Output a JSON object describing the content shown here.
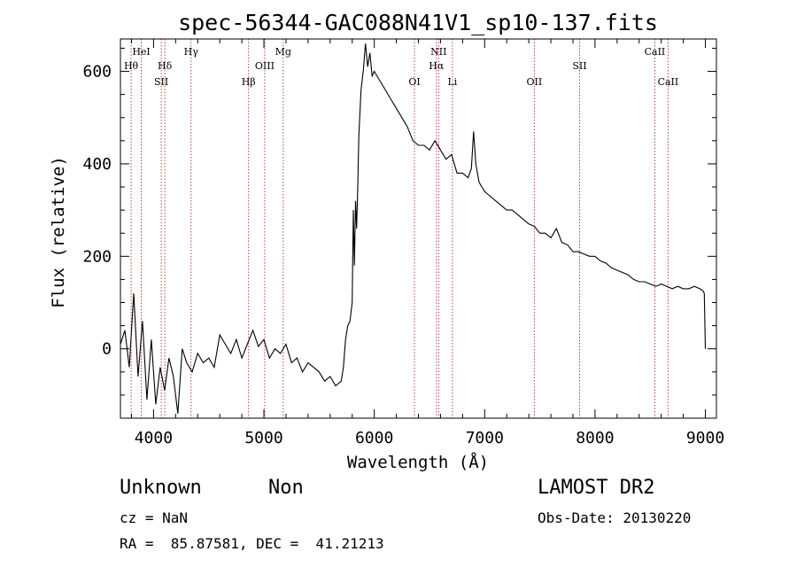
{
  "chart_data": {
    "type": "line",
    "title": "spec-56344-GAC088N41V1_sp10-137.fits",
    "xlabel": "Wavelength (Å)",
    "ylabel": "Flux (relative)",
    "xlim": [
      3700,
      9100
    ],
    "ylim": [
      -150,
      670
    ],
    "x_ticks": [
      4000,
      5000,
      6000,
      7000,
      8000,
      9000
    ],
    "y_ticks": [
      0,
      200,
      400,
      600
    ],
    "x": [
      3700,
      3740,
      3780,
      3820,
      3860,
      3900,
      3940,
      3980,
      4020,
      4060,
      4100,
      4140,
      4180,
      4220,
      4260,
      4300,
      4350,
      4400,
      4450,
      4500,
      4550,
      4600,
      4650,
      4700,
      4750,
      4800,
      4850,
      4900,
      4950,
      5000,
      5050,
      5100,
      5150,
      5200,
      5250,
      5300,
      5350,
      5400,
      5450,
      5500,
      5550,
      5600,
      5650,
      5700,
      5720,
      5740,
      5760,
      5780,
      5800,
      5810,
      5820,
      5830,
      5840,
      5850,
      5860,
      5880,
      5900,
      5920,
      5940,
      5960,
      5980,
      6000,
      6050,
      6100,
      6150,
      6200,
      6250,
      6300,
      6350,
      6400,
      6450,
      6500,
      6550,
      6600,
      6650,
      6700,
      6750,
      6800,
      6850,
      6880,
      6900,
      6920,
      6950,
      7000,
      7050,
      7100,
      7150,
      7200,
      7250,
      7300,
      7350,
      7400,
      7450,
      7500,
      7550,
      7600,
      7650,
      7700,
      7750,
      7800,
      7850,
      7900,
      7950,
      8000,
      8050,
      8100,
      8150,
      8200,
      8250,
      8300,
      8350,
      8400,
      8450,
      8500,
      8550,
      8600,
      8650,
      8700,
      8750,
      8800,
      8850,
      8900,
      8950,
      8980,
      8990,
      9000
    ],
    "y": [
      10,
      40,
      -40,
      120,
      -60,
      60,
      -110,
      20,
      -120,
      -40,
      -90,
      -20,
      -60,
      -140,
      0,
      -30,
      -50,
      -10,
      -30,
      -20,
      -40,
      30,
      10,
      -10,
      20,
      -20,
      10,
      40,
      5,
      20,
      -20,
      0,
      -10,
      10,
      -30,
      -20,
      -50,
      -30,
      -40,
      -50,
      -70,
      -60,
      -80,
      -70,
      -40,
      20,
      50,
      60,
      100,
      300,
      180,
      320,
      260,
      350,
      460,
      560,
      600,
      660,
      610,
      640,
      590,
      600,
      580,
      560,
      540,
      520,
      500,
      480,
      450,
      440,
      440,
      430,
      450,
      430,
      410,
      420,
      380,
      380,
      370,
      390,
      470,
      400,
      360,
      340,
      330,
      320,
      310,
      300,
      300,
      290,
      280,
      270,
      265,
      250,
      250,
      240,
      260,
      230,
      225,
      210,
      210,
      205,
      200,
      200,
      190,
      185,
      175,
      170,
      165,
      160,
      150,
      145,
      145,
      140,
      135,
      140,
      135,
      130,
      135,
      130,
      130,
      135,
      130,
      125,
      120,
      0
    ],
    "spectral_lines": [
      {
        "label": "Hθ",
        "x": 3797,
        "row": 2
      },
      {
        "label": "HeI",
        "x": 3889,
        "row": 1
      },
      {
        "label": "Hδ",
        "x": 4102,
        "row": 2
      },
      {
        "label": "SII",
        "x": 4070,
        "row": 3
      },
      {
        "label": "Hγ",
        "x": 4340,
        "row": 1
      },
      {
        "label": "Hβ",
        "x": 4861,
        "row": 3
      },
      {
        "label": "OIII",
        "x": 5007,
        "row": 2
      },
      {
        "label": "Mg",
        "x": 5175,
        "row": 1
      },
      {
        "label": "OI",
        "x": 6364,
        "row": 3
      },
      {
        "label": "NII",
        "x": 6583,
        "row": 1
      },
      {
        "label": "Hα",
        "x": 6563,
        "row": 2
      },
      {
        "label": "Li",
        "x": 6708,
        "row": 3
      },
      {
        "label": "OII",
        "x": 7450,
        "row": 3
      },
      {
        "label": "SII",
        "x": 7860,
        "row": 2
      },
      {
        "label": "CaII",
        "x": 8542,
        "row": 1
      },
      {
        "label": "CaII",
        "x": 8662,
        "row": 3
      }
    ]
  },
  "info": {
    "class": "Unknown",
    "subclass": "Non",
    "survey": "LAMOST DR2",
    "cz": "cz = NaN",
    "obs_date": "Obs-Date: 20130220",
    "coords": "RA =  85.87581, DEC =  41.21213"
  }
}
